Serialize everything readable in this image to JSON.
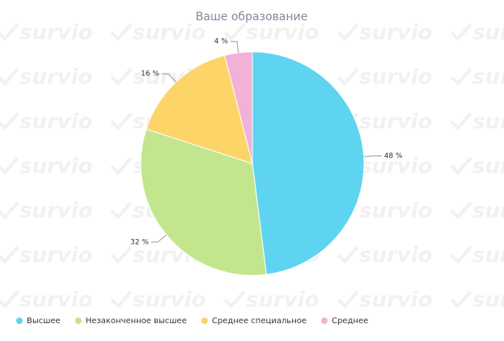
{
  "watermark": "survio",
  "chart_data": {
    "type": "pie",
    "title": "Ваше образование",
    "categories": [
      "Высшее",
      "Незаконченное высшее",
      "Среднее специальное",
      "Среднее"
    ],
    "values": [
      48,
      32,
      16,
      4
    ],
    "value_labels": [
      "48 %",
      "32 %",
      "16 %",
      "4 %"
    ],
    "colors": [
      "#5fd4f0",
      "#c3e58e",
      "#fdd467",
      "#f2b1d6"
    ],
    "legend": "bottom"
  }
}
